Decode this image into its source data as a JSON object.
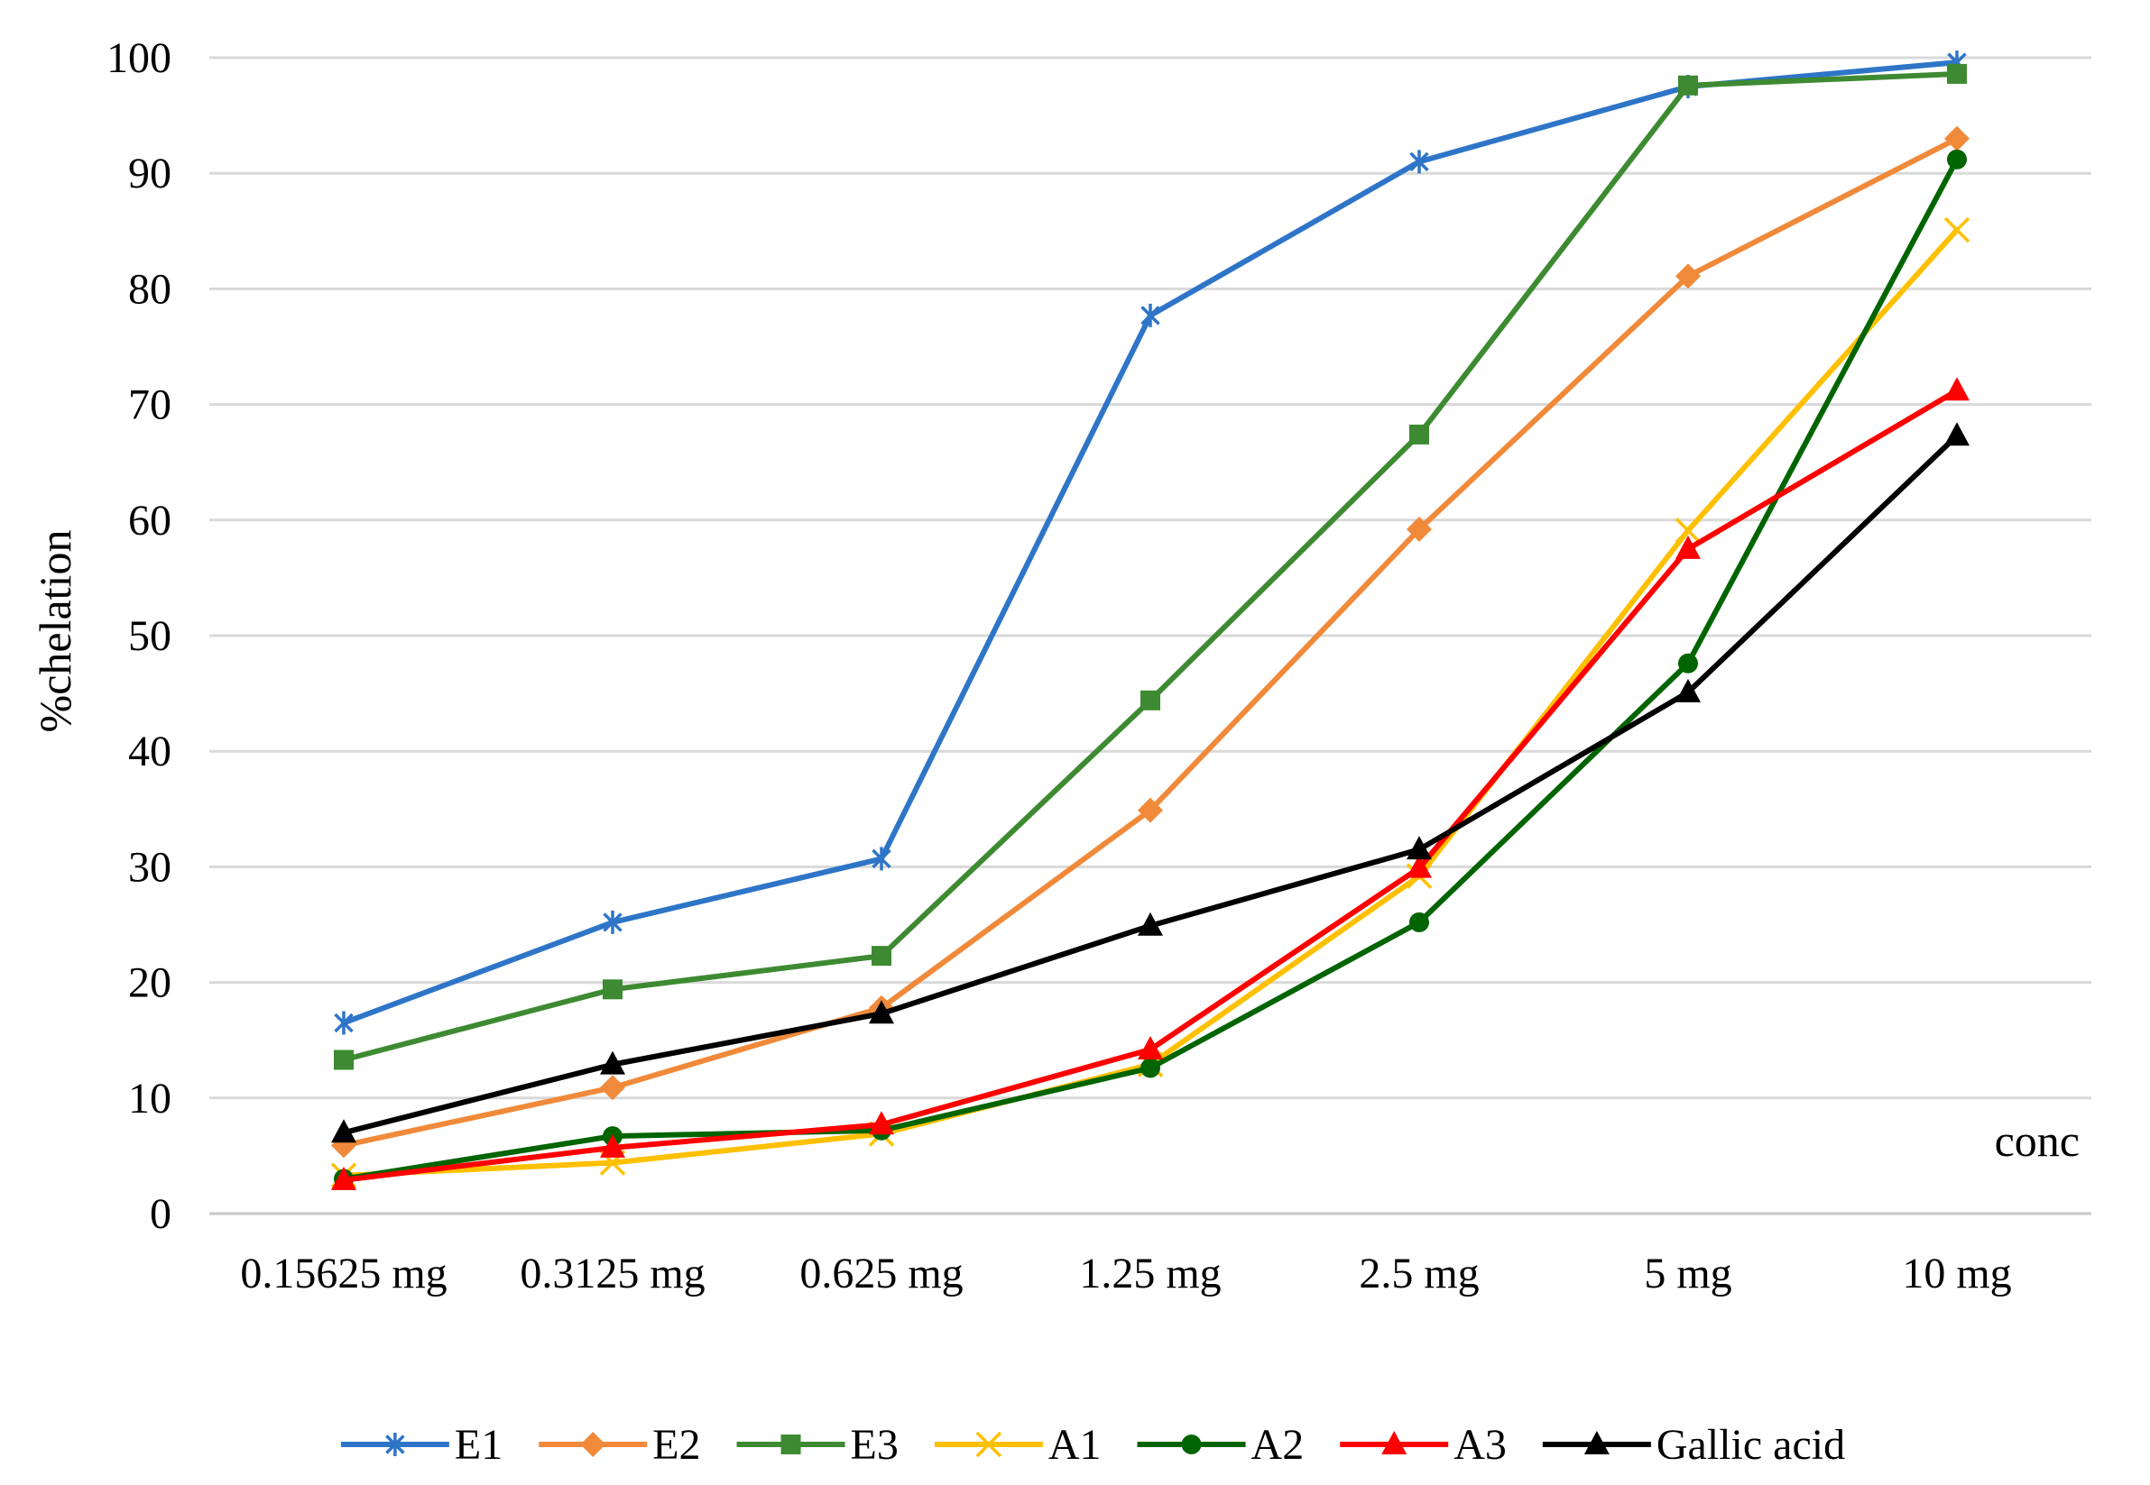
{
  "chart_data": {
    "type": "line",
    "title": "",
    "xlabel": "conc",
    "ylabel": "%chelation",
    "ylim": [
      0,
      100
    ],
    "yticks": [
      "0",
      "10",
      "20",
      "30",
      "40",
      "50",
      "60",
      "70",
      "80",
      "90",
      "100"
    ],
    "grid": "horizontal",
    "legend_position": "bottom",
    "categories": [
      "0.15625 mg",
      "0.3125 mg",
      "0.625 mg",
      "1.25 mg",
      "2.5 mg",
      "5 mg",
      "10 mg"
    ],
    "series": [
      {
        "name": "E1",
        "color": "#2e75c8",
        "marker": "asterisk",
        "values": [
          16.5,
          25.2,
          30.7,
          77.7,
          91.0,
          97.5,
          99.6
        ]
      },
      {
        "name": "E2",
        "color": "#f08a3a",
        "marker": "diamond",
        "values": [
          5.9,
          10.9,
          17.8,
          34.9,
          59.2,
          81.1,
          93.0
        ]
      },
      {
        "name": "E3",
        "color": "#3e8a32",
        "marker": "square",
        "values": [
          13.3,
          19.4,
          22.3,
          44.4,
          67.4,
          97.6,
          98.6
        ]
      },
      {
        "name": "A1",
        "color": "#ffc000",
        "marker": "x",
        "values": [
          3.3,
          4.4,
          6.9,
          12.9,
          29.2,
          59.1,
          85.1
        ]
      },
      {
        "name": "A2",
        "color": "#006400",
        "marker": "circle",
        "values": [
          3.0,
          6.7,
          7.2,
          12.6,
          25.2,
          47.6,
          91.2
        ]
      },
      {
        "name": "A3",
        "color": "#ff0000",
        "marker": "triangle",
        "values": [
          2.9,
          5.7,
          7.7,
          14.2,
          29.9,
          57.5,
          71.2
        ]
      },
      {
        "name": "Gallic acid",
        "color": "#000000",
        "marker": "triangle",
        "values": [
          7.0,
          12.9,
          17.3,
          24.9,
          31.5,
          45.1,
          67.3
        ]
      }
    ]
  }
}
